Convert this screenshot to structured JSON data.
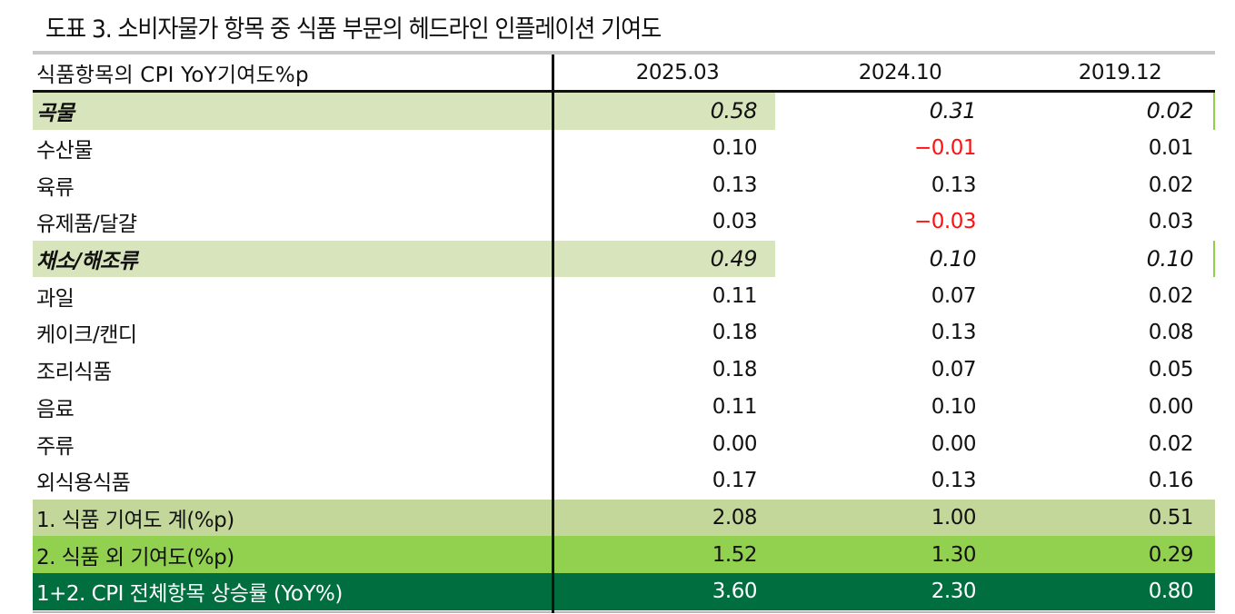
{
  "title": "도표 3. 소비자물가 항목 중 식품 부문의 헤드라인 인플레이션 기여도",
  "table": {
    "header": {
      "label": "식품항목의 CPI YoY기여도%p",
      "columns": [
        "2025.03",
        "2024.10",
        "2019.12"
      ]
    },
    "rows": [
      {
        "label": "곡물",
        "values": [
          "0.58",
          "0.31",
          "0.02"
        ],
        "style": "category"
      },
      {
        "label": "수산물",
        "values": [
          "0.10",
          "−0.01",
          "0.01"
        ],
        "style": "normal"
      },
      {
        "label": "육류",
        "values": [
          "0.13",
          "0.13",
          "0.02"
        ],
        "style": "normal"
      },
      {
        "label": "유제품/달걀",
        "values": [
          "0.03",
          "−0.03",
          "0.03"
        ],
        "style": "normal"
      },
      {
        "label": "채소/해조류",
        "values": [
          "0.49",
          "0.10",
          "0.10"
        ],
        "style": "category"
      },
      {
        "label": "과일",
        "values": [
          "0.11",
          "0.07",
          "0.02"
        ],
        "style": "normal"
      },
      {
        "label": "케이크/캔디",
        "values": [
          "0.18",
          "0.13",
          "0.08"
        ],
        "style": "normal"
      },
      {
        "label": "조리식품",
        "values": [
          "0.18",
          "0.07",
          "0.05"
        ],
        "style": "normal"
      },
      {
        "label": "음료",
        "values": [
          "0.11",
          "0.10",
          "0.00"
        ],
        "style": "normal"
      },
      {
        "label": "주류",
        "values": [
          "0.00",
          "0.00",
          "0.02"
        ],
        "style": "normal"
      },
      {
        "label": "외식용식품",
        "values": [
          "0.17",
          "0.13",
          "0.16"
        ],
        "style": "normal"
      }
    ],
    "summary": [
      {
        "label": "1. 식품 기여도 계(%p)",
        "values": [
          "2.08",
          "1.00",
          "0.51"
        ]
      },
      {
        "label": "2. 식품 외 기여도(%p)",
        "values": [
          "1.52",
          "1.30",
          "0.29"
        ]
      },
      {
        "label": "1+2. CPI 전체항목 상승률 (YoY%)",
        "values": [
          "3.60",
          "2.30",
          "0.80"
        ]
      }
    ]
  },
  "colors": {
    "category_highlight": "#d8e4bc",
    "summary1": "#c4d79b",
    "summary2": "#92d050",
    "summary3": "#006e3f",
    "negative": "#ff1010"
  }
}
